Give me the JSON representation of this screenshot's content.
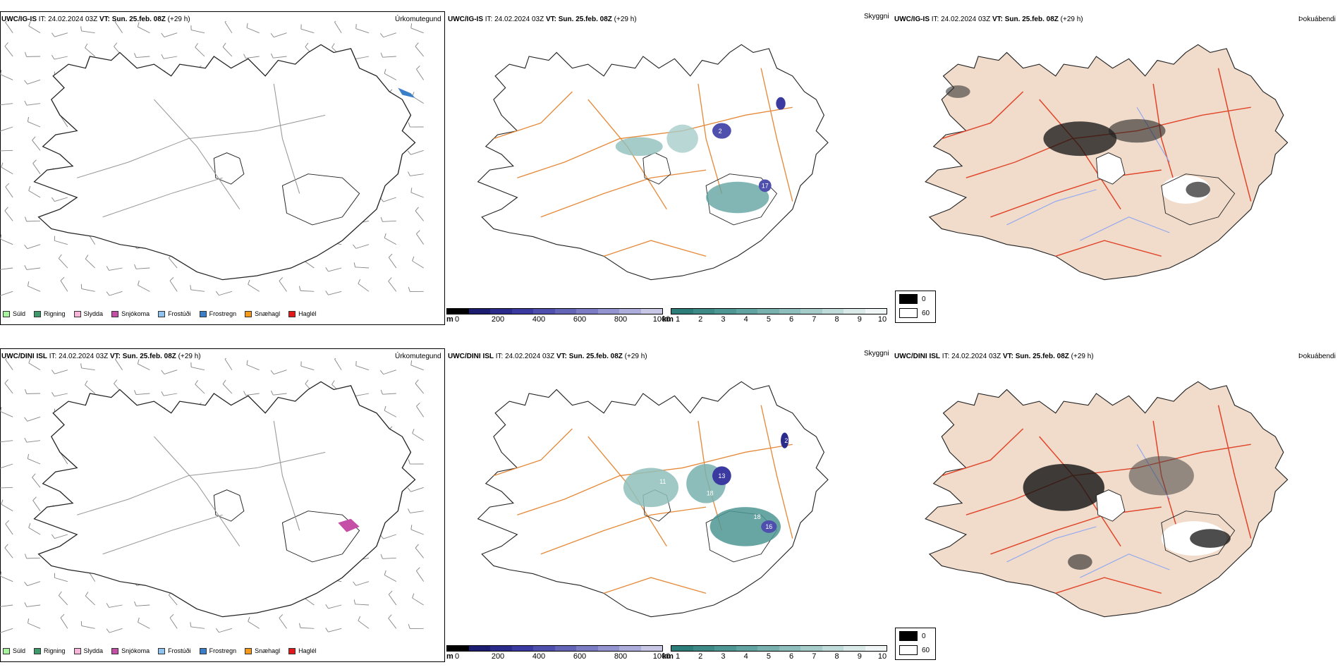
{
  "rows": [
    {
      "model": "UWC/IG-IS",
      "it_label": "IT:",
      "it_value": "24.02.2024 03Z",
      "vt_label": "VT:",
      "vt_value": "Sun. 25.feb. 08Z",
      "lead": "(+29 h)"
    },
    {
      "model": "UWC/DINI ISL",
      "it_label": "IT:",
      "it_value": "24.02.2024 03Z",
      "vt_label": "VT:",
      "vt_value": "Sun. 25.feb. 08Z",
      "lead": "(+29 h)"
    }
  ],
  "panel_types": {
    "precip": "Úrkomutegund",
    "visibility": "Skyggni",
    "fog": "Þokuábendi"
  },
  "precip_legend": [
    {
      "label": "Súld",
      "color": "#a6f59c"
    },
    {
      "label": "Rigning",
      "color": "#3d9a6a"
    },
    {
      "label": "Slydda",
      "color": "#f7b6d9"
    },
    {
      "label": "Snjókoma",
      "color": "#c54fa6"
    },
    {
      "label": "Frostúði",
      "color": "#8fc4f2"
    },
    {
      "label": "Frostregn",
      "color": "#3a7ec7"
    },
    {
      "label": "Snæhagl",
      "color": "#f39a1e"
    },
    {
      "label": "Haglél",
      "color": "#e01a1a"
    }
  ],
  "visibility_scale_m": {
    "unit": "m",
    "ticks": [
      "0",
      "200",
      "400",
      "600",
      "800",
      "1000"
    ],
    "colors": [
      "#000000",
      "#1c1c70",
      "#2b2b8c",
      "#3a3aa0",
      "#4f4fae",
      "#6565b8",
      "#7c7cc4",
      "#9494d0",
      "#adaddb",
      "#c8c8e6"
    ]
  },
  "visibility_scale_km": {
    "unit": "km",
    "ticks": [
      "1",
      "2",
      "3",
      "4",
      "5",
      "6",
      "7",
      "8",
      "9",
      "10"
    ],
    "colors": [
      "#2d7d7a",
      "#3d8a87",
      "#4e9794",
      "#62a4a1",
      "#78b1ae",
      "#8fbfbc",
      "#a7cdcb",
      "#c0dcda",
      "#d9eae9",
      "#f0f6f6"
    ]
  },
  "cloud_key": [
    {
      "label": "0",
      "color": "#000000"
    },
    {
      "label": "60",
      "color": "#ffffff"
    }
  ],
  "map_labels_top": [
    "2",
    "20",
    "17"
  ],
  "map_labels_bottom": [
    "2",
    "18",
    "16",
    "13",
    "11",
    "18"
  ]
}
